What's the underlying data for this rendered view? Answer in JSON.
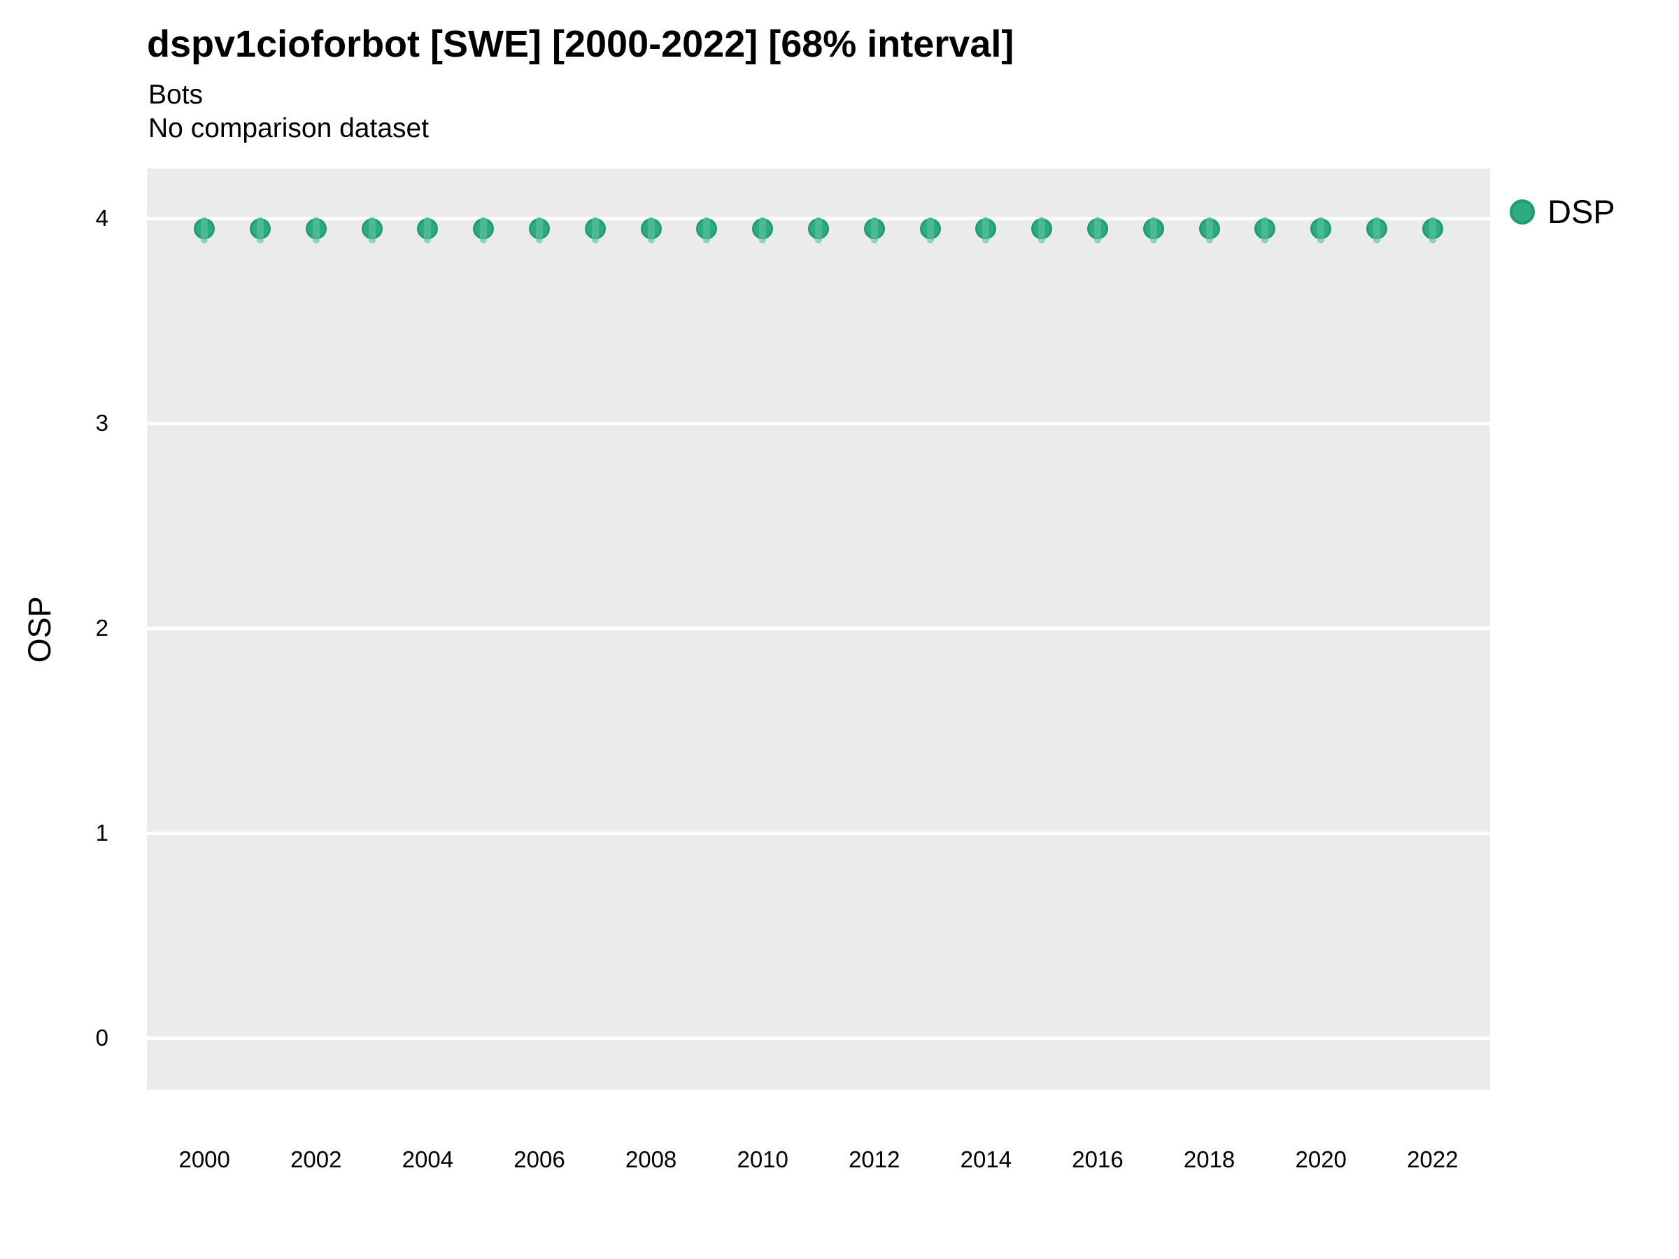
{
  "header": {
    "title": "dspv1cioforbot [SWE] [2000-2022] [68% interval]",
    "subtitle": "Bots",
    "subtitle2": "No comparison dataset"
  },
  "legend": {
    "label": "DSP"
  },
  "y_axis": {
    "label": "OSP",
    "tick_labels": [
      "4",
      "3",
      "2",
      "1",
      "0"
    ]
  },
  "x_axis": {
    "tick_labels": [
      "2000",
      "2002",
      "2004",
      "2006",
      "2008",
      "2010",
      "2012",
      "2014",
      "2016",
      "2018",
      "2020",
      "2022"
    ]
  },
  "chart_data": {
    "type": "scatter",
    "title": "dspv1cioforbot [SWE] [2000-2022] [68% interval]",
    "subtitle": [
      "Bots",
      "No comparison dataset"
    ],
    "xlabel": "",
    "ylabel": "OSP",
    "x": [
      2000,
      2001,
      2002,
      2003,
      2004,
      2005,
      2006,
      2007,
      2008,
      2009,
      2010,
      2011,
      2012,
      2013,
      2014,
      2015,
      2016,
      2017,
      2018,
      2019,
      2020,
      2021,
      2022
    ],
    "series": [
      {
        "name": "DSP",
        "interval": "68%",
        "values": [
          3.95,
          3.95,
          3.95,
          3.95,
          3.95,
          3.95,
          3.95,
          3.95,
          3.95,
          3.95,
          3.95,
          3.95,
          3.95,
          3.95,
          3.95,
          3.95,
          3.95,
          3.95,
          3.95,
          3.95,
          3.95,
          3.95,
          3.95
        ],
        "interval_low": [
          3.88,
          3.88,
          3.88,
          3.88,
          3.88,
          3.88,
          3.88,
          3.88,
          3.88,
          3.88,
          3.88,
          3.88,
          3.88,
          3.88,
          3.88,
          3.88,
          3.88,
          3.88,
          3.88,
          3.88,
          3.88,
          3.88,
          3.88
        ],
        "interval_high": [
          4.01,
          4.01,
          4.01,
          4.01,
          4.01,
          4.01,
          4.01,
          4.01,
          4.01,
          4.01,
          4.01,
          4.01,
          4.01,
          4.01,
          4.01,
          4.01,
          4.01,
          4.01,
          4.01,
          4.01,
          4.01,
          4.01,
          4.01
        ]
      }
    ],
    "xticks": [
      2000,
      2002,
      2004,
      2006,
      2008,
      2010,
      2012,
      2014,
      2016,
      2018,
      2020,
      2022
    ],
    "yticks": [
      4,
      3,
      2,
      1,
      0
    ],
    "xlim": [
      1998.97,
      2023.03
    ],
    "ylim": [
      -0.252,
      4.244
    ],
    "grid": "major horizontal white lines on gray panel",
    "legend_position": "right-top"
  },
  "colors": {
    "point_fill": "#2eac80",
    "point_border": "#1f9d72",
    "interval_fill": "rgba(90, 195, 155, 0.62)",
    "panel_bg": "#ebebeb",
    "grid_line": "#ffffff",
    "text": "#000000"
  }
}
